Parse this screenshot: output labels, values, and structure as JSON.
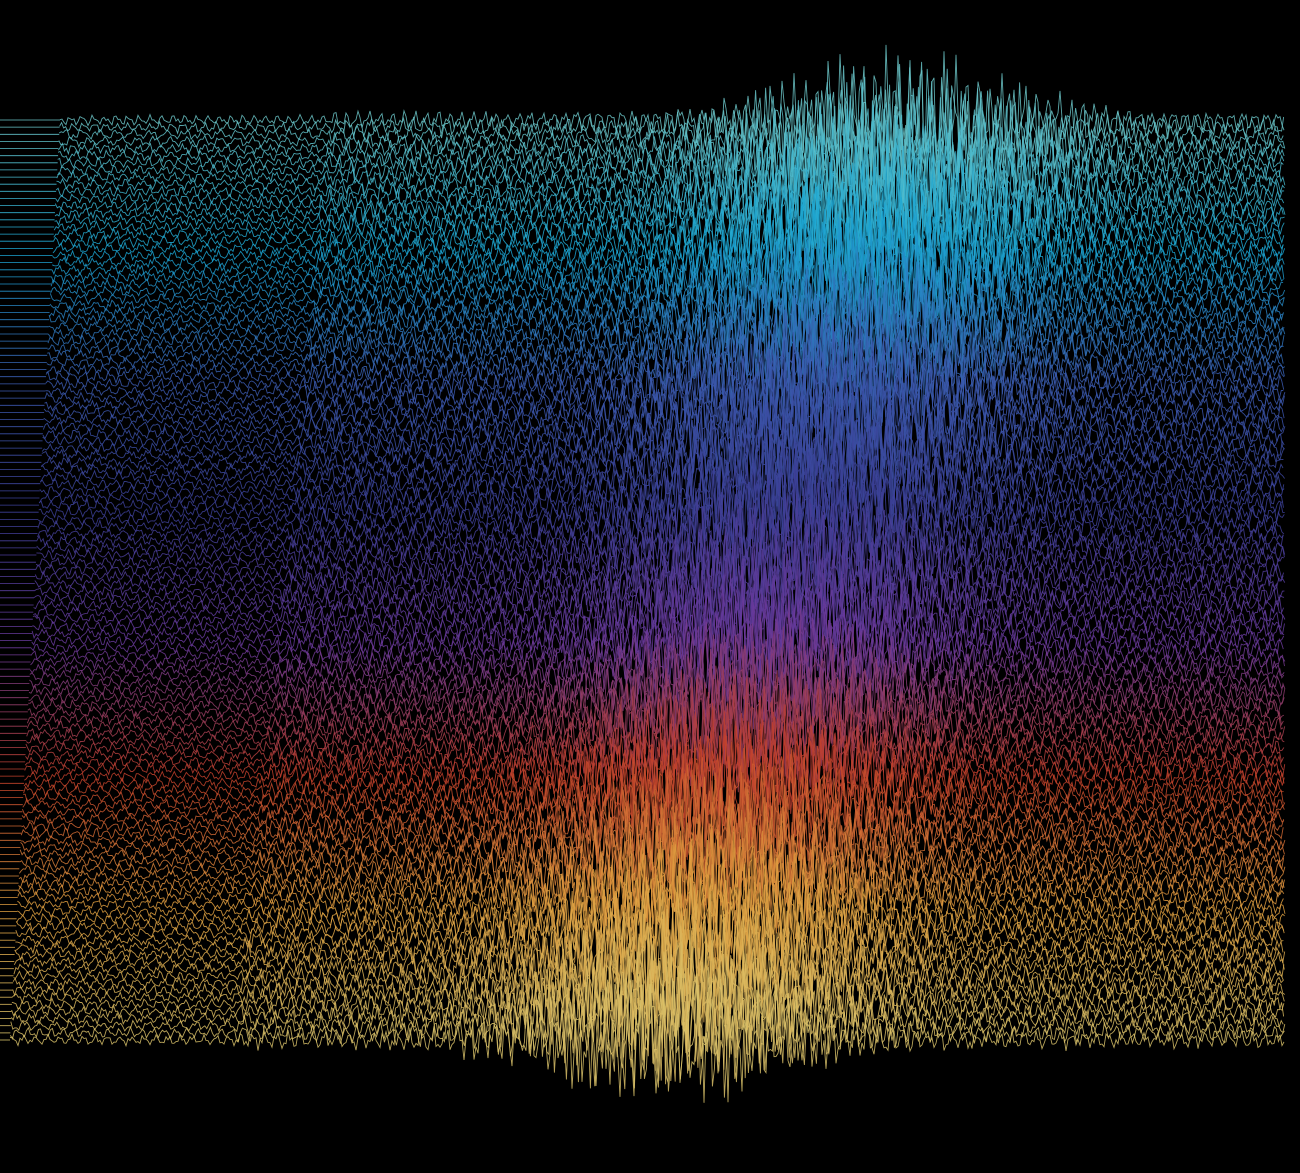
{
  "artwork": {
    "background": "#000000",
    "palette": [
      "#6cc7c9",
      "#1aa6d3",
      "#3b5bb0",
      "#3c3f96",
      "#6a3a9c",
      "#c3402a",
      "#e0a040",
      "#d9c26a"
    ],
    "trace_count": 130,
    "description_icon": "waveform-art-icon"
  }
}
